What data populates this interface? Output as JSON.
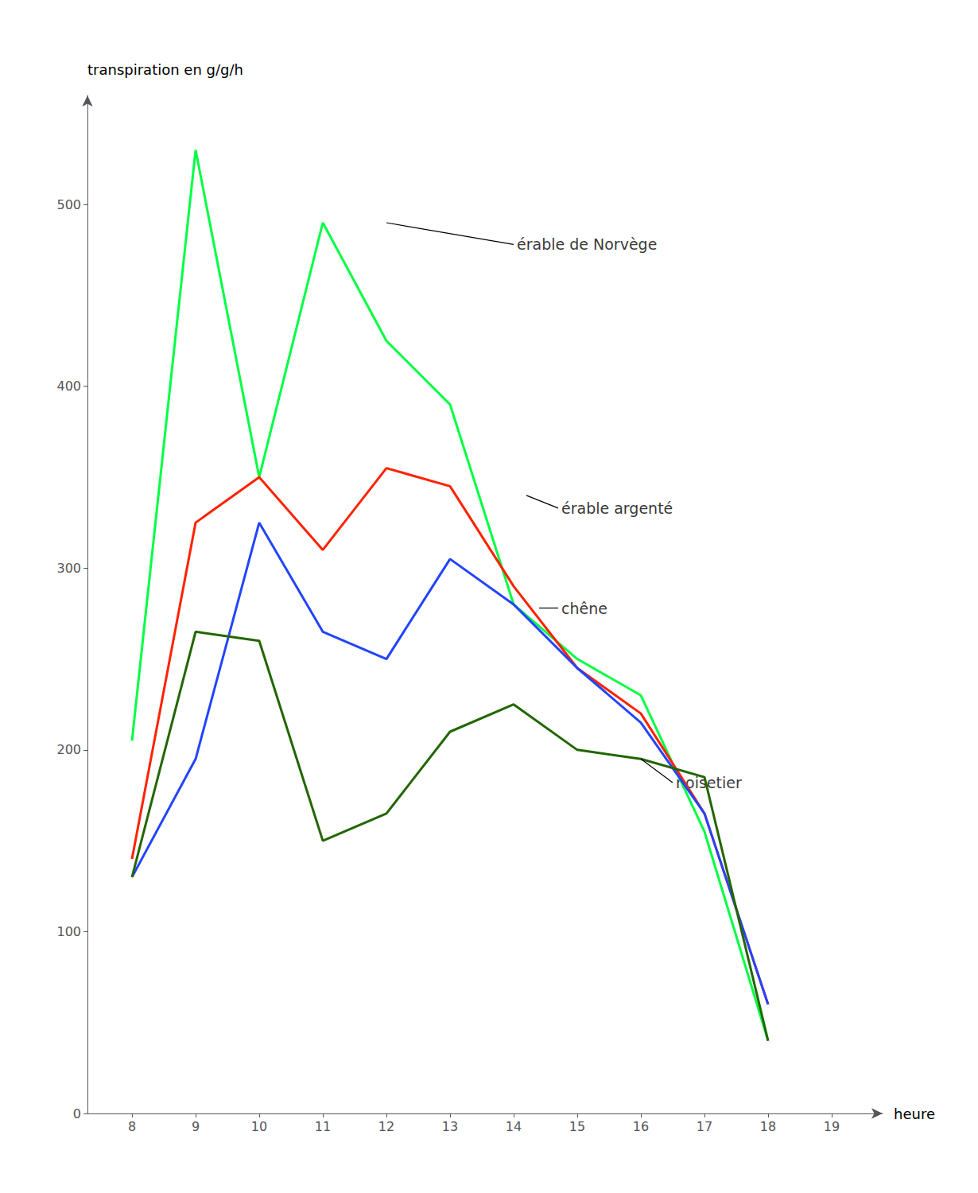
{
  "chart_data": {
    "type": "line",
    "xlabel": "heure",
    "ylabel": "transpiration en g/g/h",
    "x": [
      8,
      9,
      10,
      11,
      12,
      13,
      14,
      15,
      16,
      17,
      18
    ],
    "series": [
      {
        "color": "#00ff44",
        "values": [
          205,
          530,
          350,
          490,
          425,
          390,
          280,
          250,
          230,
          155,
          40
        ]
      },
      {
        "color": "#ff2200",
        "values": [
          140,
          325,
          350,
          310,
          355,
          345,
          290,
          245,
          220,
          165,
          60
        ]
      },
      {
        "color": "#2244ff",
        "values": [
          130,
          195,
          325,
          265,
          250,
          305,
          280,
          245,
          215,
          165,
          60
        ]
      },
      {
        "color": "#226600",
        "values": [
          130,
          265,
          260,
          150,
          165,
          210,
          225,
          200,
          195,
          185,
          40
        ]
      }
    ],
    "xlim": [
      7.3,
      19.8
    ],
    "xticks": [
      8,
      9,
      10,
      11,
      12,
      13,
      14,
      15,
      16,
      17,
      18,
      19
    ],
    "ylim": [
      0,
      560
    ],
    "yticks": [
      0,
      100,
      200,
      300,
      400,
      500
    ],
    "grid": false,
    "annotations": [
      {
        "text": "érable de Norvège",
        "xy": [
          12.0,
          490
        ],
        "xytext": [
          14.0,
          478
        ]
      },
      {
        "text": "érable argenté",
        "xy": [
          14.2,
          340
        ],
        "xytext": [
          14.7,
          333
        ]
      },
      {
        "text": "chêne",
        "xy": [
          14.4,
          278
        ],
        "xytext": [
          14.7,
          278
        ]
      },
      {
        "text": "noisetier",
        "xy": [
          16.0,
          195
        ],
        "xytext": [
          16.5,
          182
        ]
      }
    ]
  }
}
